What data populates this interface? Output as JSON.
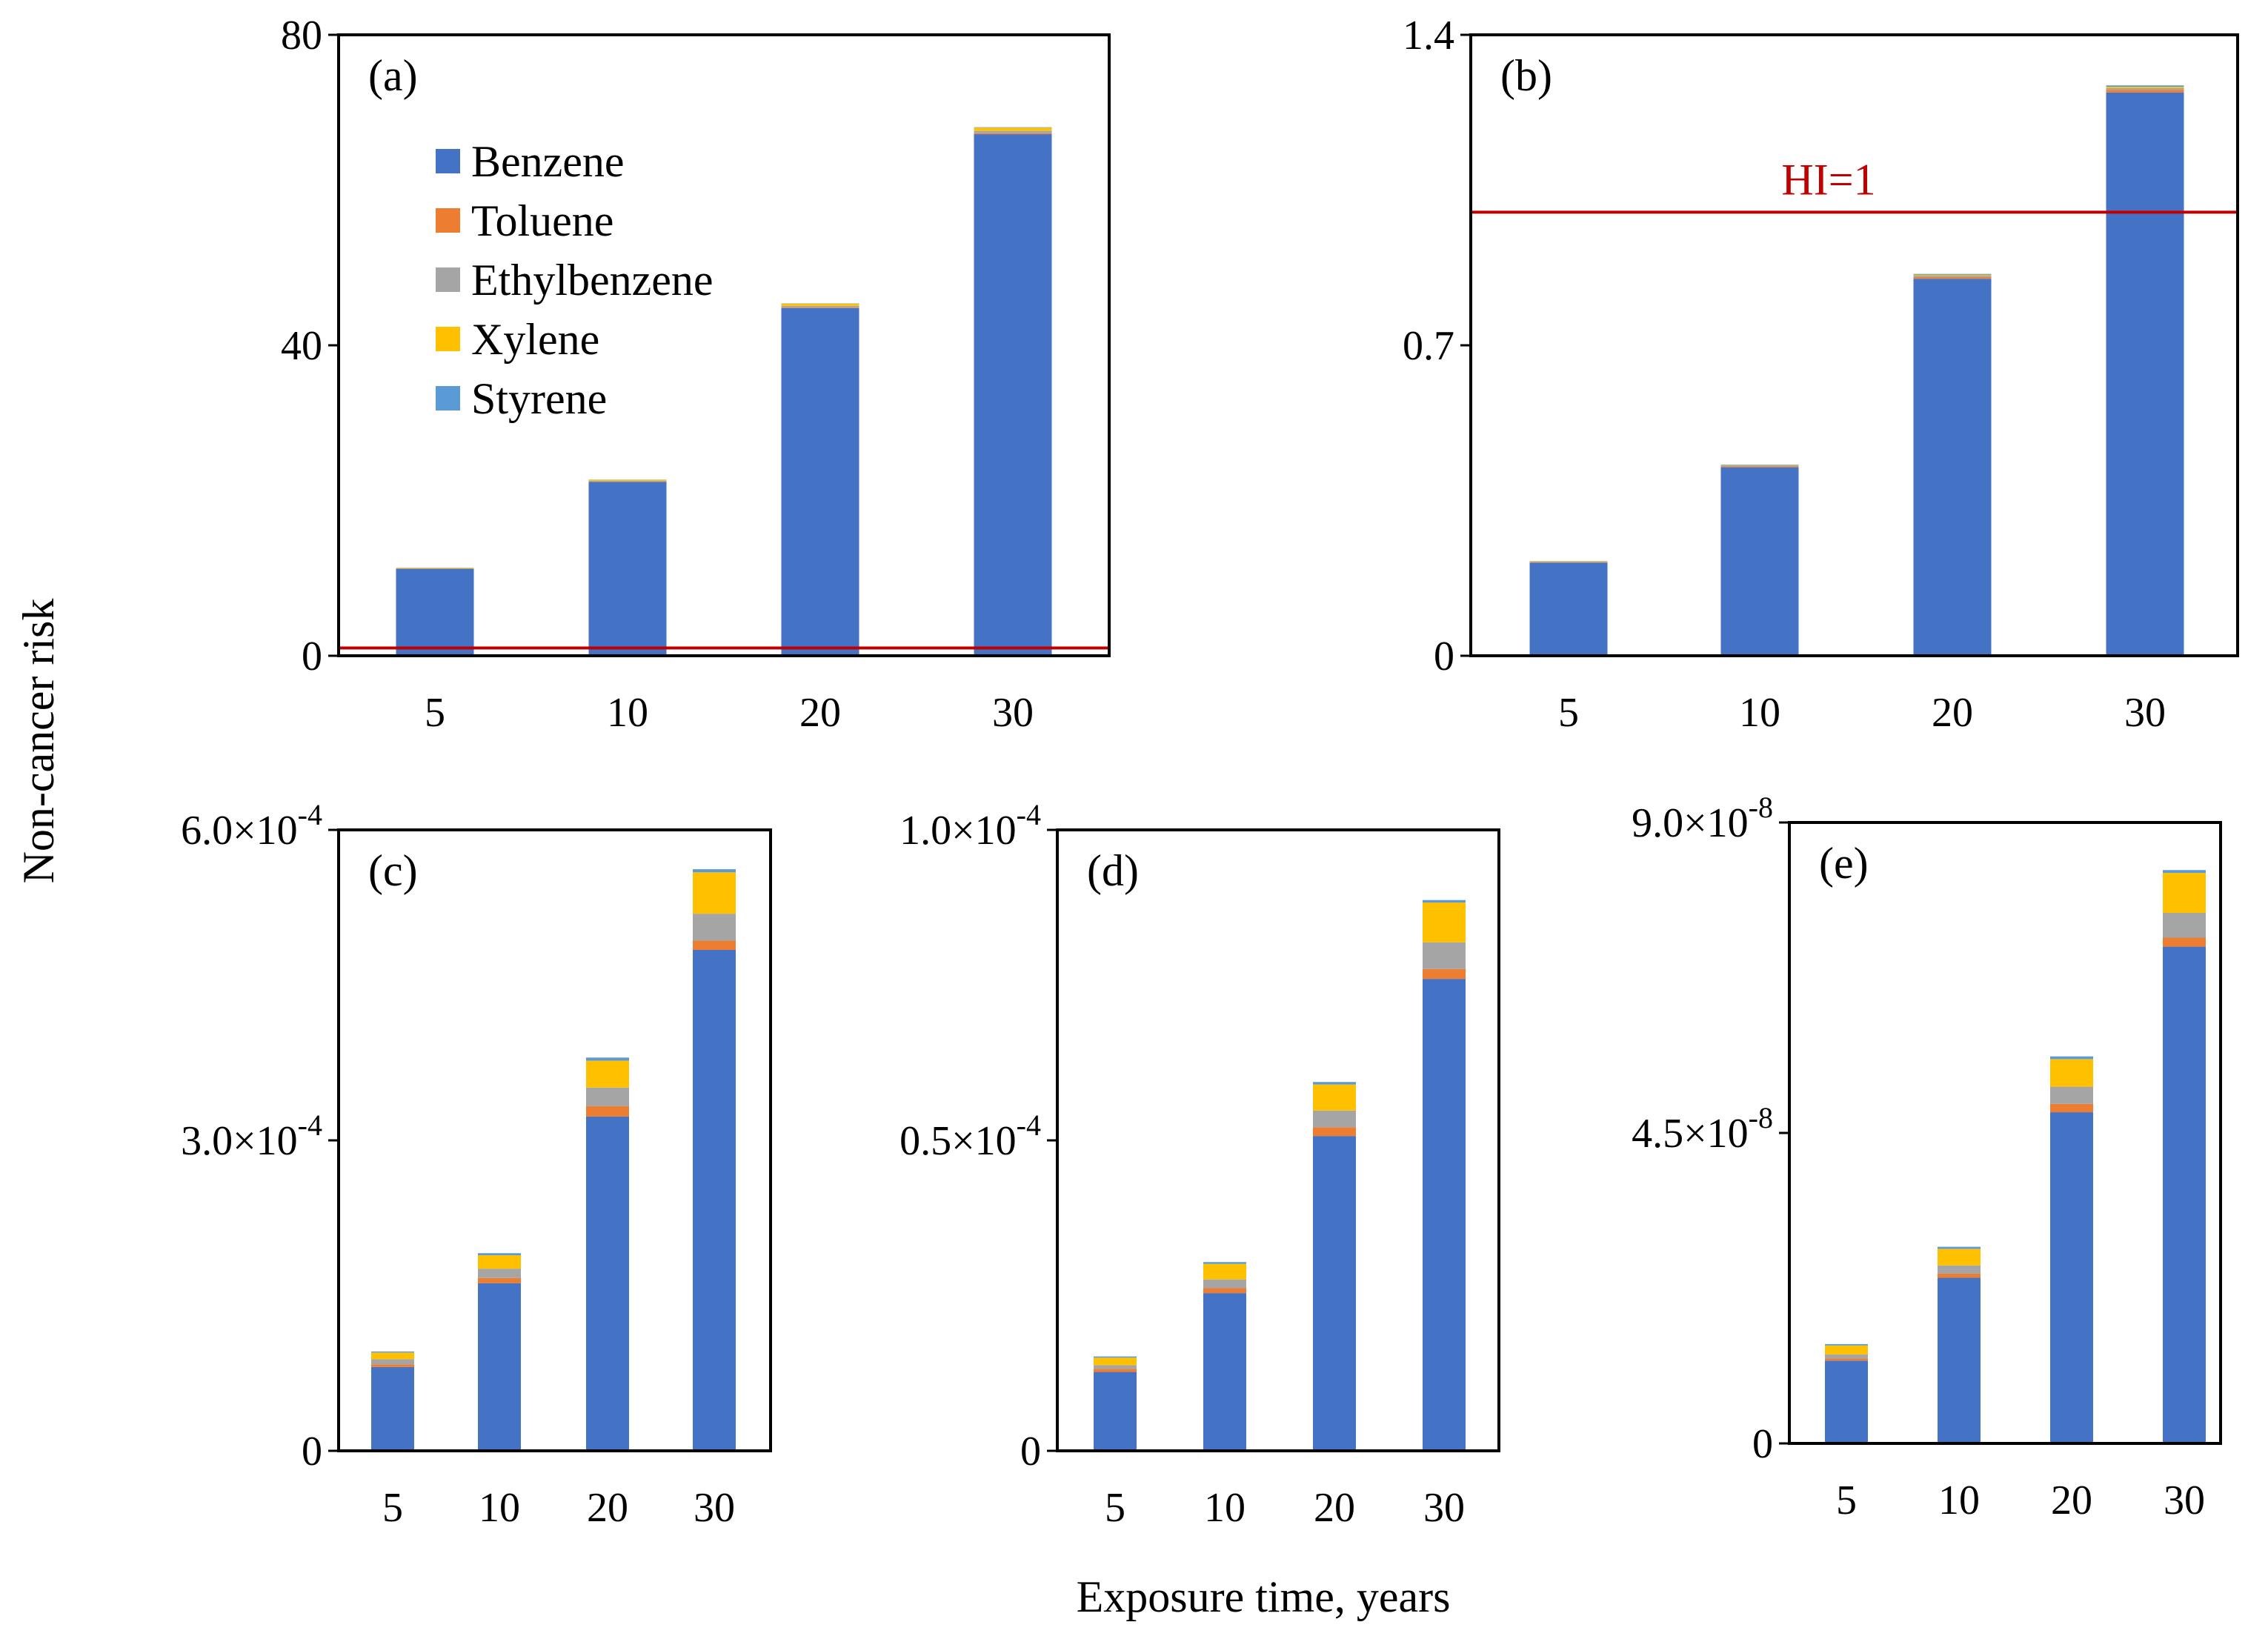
{
  "figure": {
    "shared_ylabel": "Non-cancer risk",
    "shared_xlabel": "Exposure time, years"
  },
  "legend": {
    "placement": "inside panel (a), top-left",
    "items": [
      {
        "name": "Benzene",
        "color": "#4472C4"
      },
      {
        "name": "Toluene",
        "color": "#ED7D31"
      },
      {
        "name": "Ethylbenzene",
        "color": "#A5A5A5"
      },
      {
        "name": "Xylene",
        "color": "#FFC000"
      },
      {
        "name": "Styrene",
        "color": "#5B9BD5"
      }
    ]
  },
  "chart_data": [
    {
      "id": "a",
      "panel_label": "(a)",
      "type": "bar",
      "stacked": true,
      "categories": [
        "5",
        "10",
        "20",
        "30"
      ],
      "ylim": [
        0,
        80
      ],
      "yticks": [
        {
          "value": 0,
          "label": "0"
        },
        {
          "value": 40,
          "label": "40"
        },
        {
          "value": 80,
          "label": "80"
        }
      ],
      "threshold": {
        "value": 1,
        "label": "",
        "color": "#C00000"
      },
      "series": [
        {
          "name": "Benzene",
          "color": "#4472C4",
          "values": [
            11.2,
            22.4,
            44.8,
            67.2
          ]
        },
        {
          "name": "Toluene",
          "color": "#ED7D31",
          "values": [
            0.02,
            0.04,
            0.08,
            0.12
          ]
        },
        {
          "name": "Ethylbenzene",
          "color": "#A5A5A5",
          "values": [
            0.05,
            0.1,
            0.2,
            0.3
          ]
        },
        {
          "name": "Xylene",
          "color": "#FFC000",
          "values": [
            0.07,
            0.14,
            0.28,
            0.42
          ]
        },
        {
          "name": "Styrene",
          "color": "#5B9BD5",
          "values": [
            0.01,
            0.02,
            0.04,
            0.06
          ]
        }
      ]
    },
    {
      "id": "b",
      "panel_label": "(b)",
      "type": "bar",
      "stacked": true,
      "categories": [
        "5",
        "10",
        "20",
        "30"
      ],
      "ylim": [
        0,
        1.4
      ],
      "yticks": [
        {
          "value": 0,
          "label": "0"
        },
        {
          "value": 0.7,
          "label": "0.7"
        },
        {
          "value": 1.4,
          "label": "1.4"
        }
      ],
      "threshold": {
        "value": 1,
        "label": "HI=1",
        "color": "#C00000"
      },
      "series": [
        {
          "name": "Benzene",
          "color": "#4472C4",
          "values": [
            0.21,
            0.425,
            0.85,
            1.27
          ]
        },
        {
          "name": "Toluene",
          "color": "#ED7D31",
          "values": [
            0.001,
            0.002,
            0.004,
            0.006
          ]
        },
        {
          "name": "Ethylbenzene",
          "color": "#A5A5A5",
          "values": [
            0.001,
            0.002,
            0.003,
            0.004
          ]
        },
        {
          "name": "Xylene",
          "color": "#FFC000",
          "values": [
            0.001,
            0.001,
            0.002,
            0.003
          ]
        },
        {
          "name": "Styrene",
          "color": "#5B9BD5",
          "values": [
            0.0005,
            0.001,
            0.002,
            0.003
          ]
        }
      ]
    },
    {
      "id": "c",
      "panel_label": "(c)",
      "type": "bar",
      "stacked": true,
      "categories": [
        "5",
        "10",
        "20",
        "30"
      ],
      "ylim": [
        0,
        0.0006
      ],
      "yticks": [
        {
          "value": 0,
          "mant": "0",
          "exp": ""
        },
        {
          "value": 0.0003,
          "mant": "3.0×10",
          "exp": "-4"
        },
        {
          "value": 0.0006,
          "mant": "6.0×10",
          "exp": "-4"
        }
      ],
      "series": [
        {
          "name": "Benzene",
          "color": "#4472C4",
          "values": [
            8.1e-05,
            0.000162,
            0.000323,
            0.000484
          ]
        },
        {
          "name": "Toluene",
          "color": "#ED7D31",
          "values": [
            2.5e-06,
            5e-06,
            1e-05,
            9e-06
          ]
        },
        {
          "name": "Ethylbenzene",
          "color": "#A5A5A5",
          "values": [
            5e-06,
            9e-06,
            1.8e-05,
            2.6e-05
          ]
        },
        {
          "name": "Xylene",
          "color": "#FFC000",
          "values": [
            6.5e-06,
            1.3e-05,
            2.6e-05,
            4e-05
          ]
        },
        {
          "name": "Styrene",
          "color": "#5B9BD5",
          "values": [
            1e-06,
            2e-06,
            3e-06,
            3e-06
          ]
        }
      ]
    },
    {
      "id": "d",
      "panel_label": "(d)",
      "type": "bar",
      "stacked": true,
      "categories": [
        "5",
        "10",
        "20",
        "30"
      ],
      "ylim": [
        0,
        0.0001
      ],
      "yticks": [
        {
          "value": 0,
          "mant": "0",
          "exp": ""
        },
        {
          "value": 5e-05,
          "mant": "0.5×10",
          "exp": "-4"
        },
        {
          "value": 0.0001,
          "mant": "1.0×10",
          "exp": "-4"
        }
      ],
      "series": [
        {
          "name": "Benzene",
          "color": "#4472C4",
          "values": [
            1.27e-05,
            2.54e-05,
            5.07e-05,
            7.6e-05
          ]
        },
        {
          "name": "Toluene",
          "color": "#ED7D31",
          "values": [
            5e-07,
            8e-07,
            1.4e-06,
            1.6e-06
          ]
        },
        {
          "name": "Ethylbenzene",
          "color": "#A5A5A5",
          "values": [
            6e-07,
            1.4e-06,
            2.7e-06,
            4.3e-06
          ]
        },
        {
          "name": "Xylene",
          "color": "#FFC000",
          "values": [
            1.2e-06,
            2.5e-06,
            4.2e-06,
            6.4e-06
          ]
        },
        {
          "name": "Styrene",
          "color": "#5B9BD5",
          "values": [
            2e-07,
            3e-07,
            4e-07,
            4e-07
          ]
        }
      ]
    },
    {
      "id": "e",
      "panel_label": "(e)",
      "type": "bar",
      "stacked": true,
      "categories": [
        "5",
        "10",
        "20",
        "30"
      ],
      "ylim": [
        0,
        9e-08
      ],
      "yticks": [
        {
          "value": 0,
          "mant": "0",
          "exp": ""
        },
        {
          "value": 4.5e-08,
          "mant": "4.5×10",
          "exp": "-8"
        },
        {
          "value": 9e-08,
          "mant": "9.0×10",
          "exp": "-8"
        }
      ],
      "series": [
        {
          "name": "Benzene",
          "color": "#4472C4",
          "values": [
            1.2e-08,
            2.4e-08,
            4.8e-08,
            7.2e-08
          ]
        },
        {
          "name": "Toluene",
          "color": "#ED7D31",
          "values": [
            3e-10,
            6e-10,
            1.2e-09,
            1.3e-09
          ]
        },
        {
          "name": "Ethylbenzene",
          "color": "#A5A5A5",
          "values": [
            6e-10,
            1.2e-09,
            2.5e-09,
            3.6e-09
          ]
        },
        {
          "name": "Xylene",
          "color": "#FFC000",
          "values": [
            1.3e-09,
            2.4e-09,
            4e-09,
            5.8e-09
          ]
        },
        {
          "name": "Styrene",
          "color": "#5B9BD5",
          "values": [
            2e-10,
            3e-10,
            4e-10,
            4e-10
          ]
        }
      ]
    }
  ]
}
